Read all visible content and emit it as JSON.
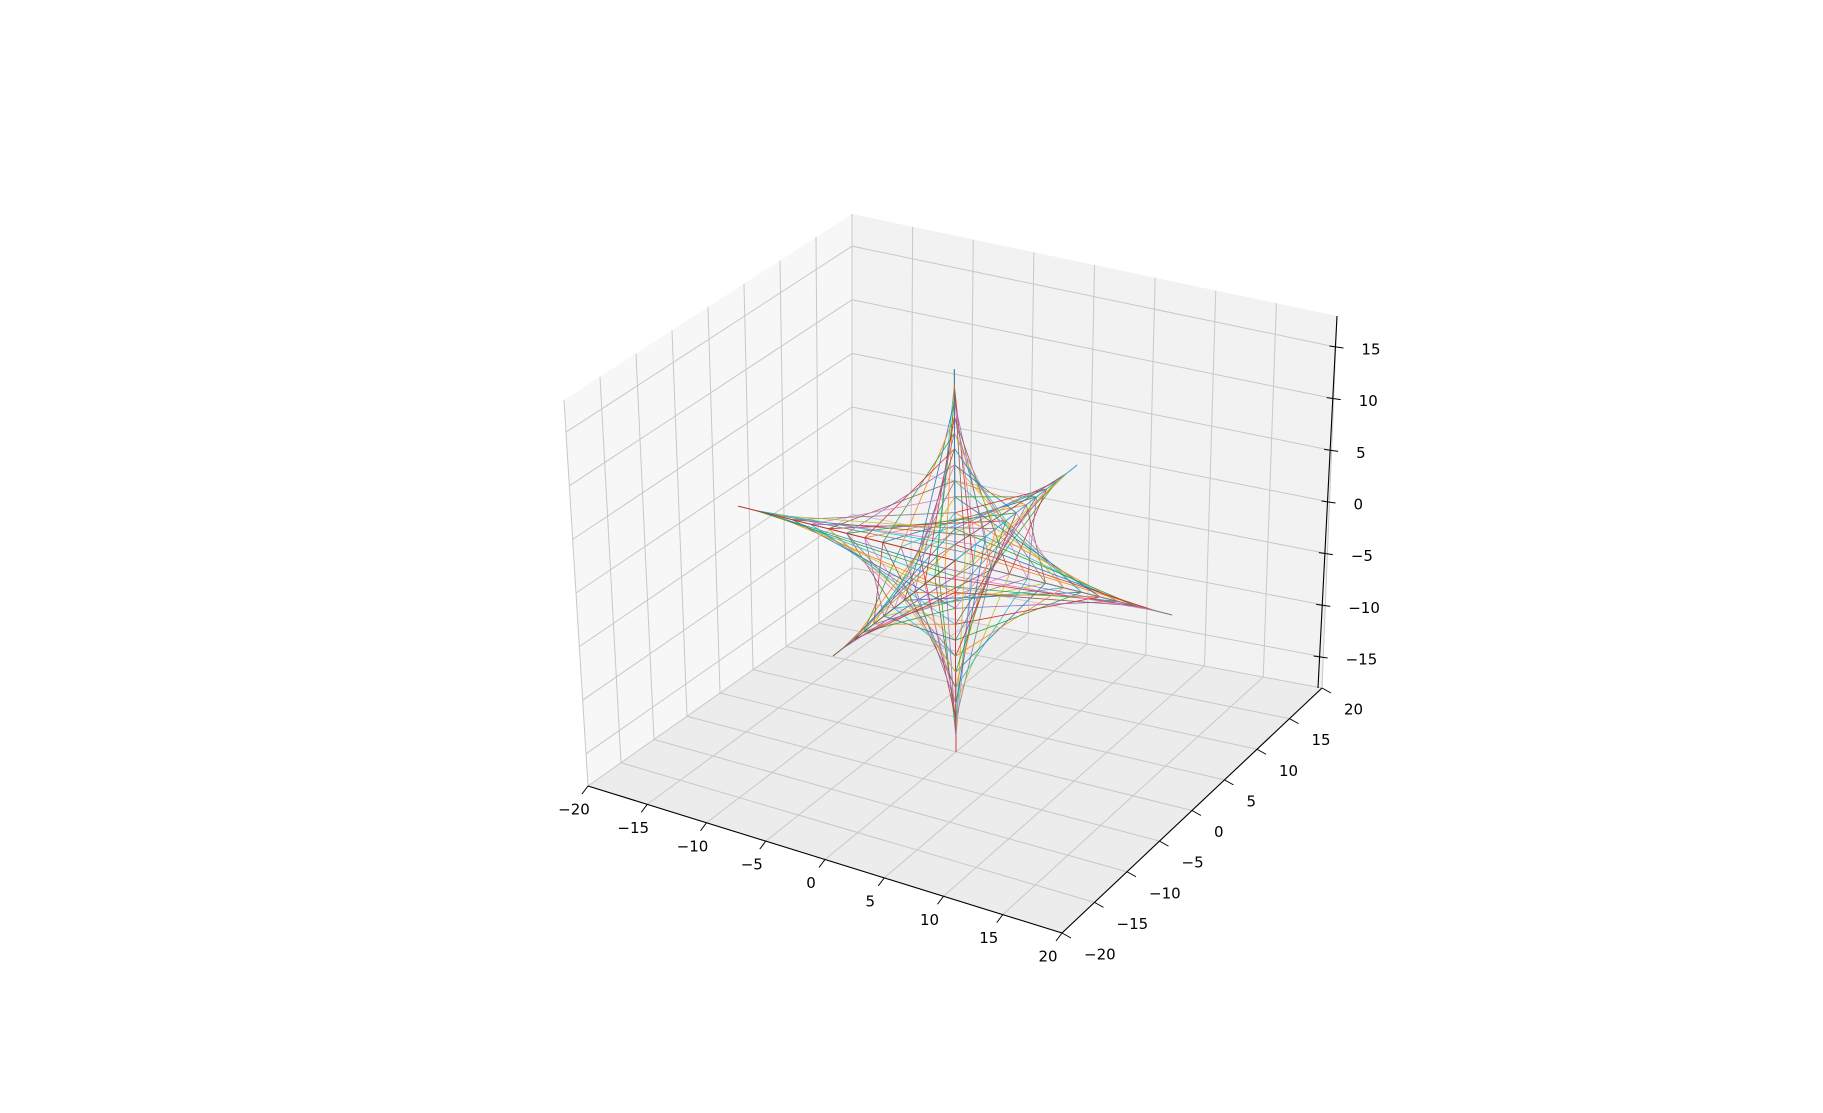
{
  "chart_data": {
    "type": "line",
    "subtype": "3d-wireframe",
    "title": "",
    "xlabel": "",
    "ylabel": "",
    "zlabel": "",
    "xlim": [
      -20,
      20
    ],
    "ylim": [
      -20,
      20
    ],
    "zlim": [
      -18,
      18
    ],
    "x_ticks": [
      "−20",
      "−15",
      "−10",
      "−5",
      "0",
      "5",
      "10",
      "15",
      "20"
    ],
    "y_ticks": [
      "−20",
      "−15",
      "−10",
      "−5",
      "0",
      "5",
      "10",
      "15",
      "20"
    ],
    "z_ticks": [
      "−15",
      "−10",
      "−5",
      "0",
      "5",
      "10",
      "15"
    ],
    "grid": true,
    "surface": {
      "description": "six-pointed astroid star built from straight line segments between pairs of coordinate axes",
      "tip_radius": 18,
      "axis_tips": [
        [
          18,
          0,
          0
        ],
        [
          -18,
          0,
          0
        ],
        [
          0,
          18,
          0
        ],
        [
          0,
          -18,
          0
        ],
        [
          0,
          0,
          18
        ],
        [
          0,
          0,
          -18
        ]
      ],
      "segments_per_face": 12
    },
    "colors": [
      "#1f77b4",
      "#ff7f0e",
      "#2ca02c",
      "#d62728",
      "#9467bd",
      "#8c564b",
      "#e377c2",
      "#7f7f7f",
      "#bcbd22",
      "#17becf"
    ]
  }
}
